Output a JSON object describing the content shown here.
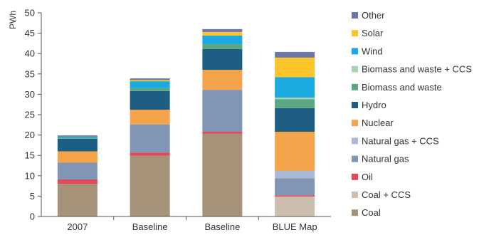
{
  "chart_data": {
    "type": "bar",
    "stacked": true,
    "title": "",
    "xlabel": "",
    "ylabel": "PWh",
    "ylim": [
      0,
      50
    ],
    "yticks": [
      0,
      5,
      10,
      15,
      20,
      25,
      30,
      35,
      40,
      45,
      50
    ],
    "categories": [
      "2007",
      "Baseline",
      "Baseline",
      "BLUE Map"
    ],
    "legend_position": "right",
    "grid": false,
    "series": [
      {
        "name": "Coal",
        "color": "#a59279",
        "values": [
          8.0,
          14.9,
          20.3,
          0.0
        ]
      },
      {
        "name": "Coal + CCS",
        "color": "#cbbeae",
        "values": [
          0.0,
          0.0,
          0.0,
          4.9
        ]
      },
      {
        "name": "Oil",
        "color": "#e04a5a",
        "values": [
          1.1,
          0.8,
          0.5,
          0.3
        ]
      },
      {
        "name": "Natural gas",
        "color": "#8196b4",
        "values": [
          4.1,
          6.9,
          10.3,
          4.2
        ]
      },
      {
        "name": "Natural gas + CCS",
        "color": "#a9b9d6",
        "values": [
          0.0,
          0.0,
          0.0,
          1.8
        ]
      },
      {
        "name": "Nuclear",
        "color": "#f4a44a",
        "values": [
          2.8,
          3.6,
          4.9,
          9.6
        ]
      },
      {
        "name": "Hydro",
        "color": "#1d5e82",
        "values": [
          3.1,
          4.6,
          5.1,
          5.8
        ]
      },
      {
        "name": "Biomass and waste",
        "color": "#5ba782",
        "values": [
          0.3,
          0.7,
          1.2,
          2.2
        ]
      },
      {
        "name": "Biomass and waste + CCS",
        "color": "#a6d3b4",
        "values": [
          0.0,
          0.0,
          0.0,
          0.4
        ]
      },
      {
        "name": "Wind",
        "color": "#1aa9e1",
        "values": [
          0.2,
          1.7,
          2.1,
          5.0
        ]
      },
      {
        "name": "Solar",
        "color": "#fbc42b",
        "values": [
          0.0,
          0.3,
          0.9,
          4.8
        ]
      },
      {
        "name": "Other",
        "color": "#6a77ab",
        "values": [
          0.3,
          0.4,
          0.7,
          1.4
        ]
      }
    ]
  }
}
